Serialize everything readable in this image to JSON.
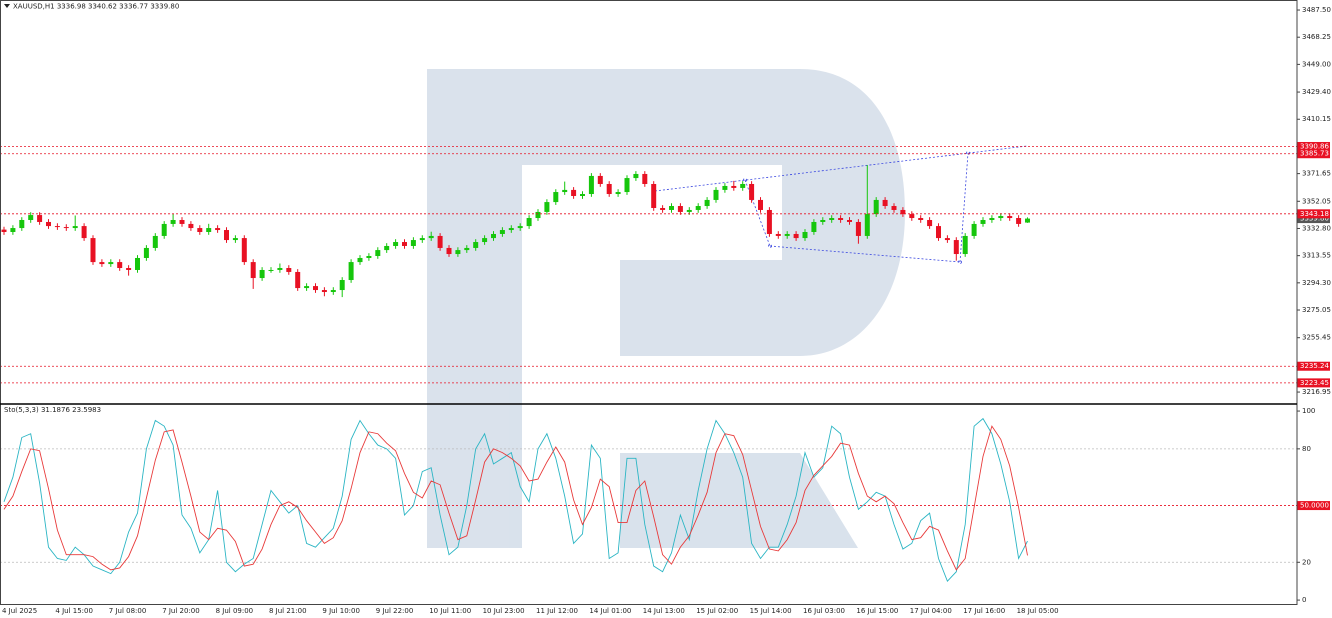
{
  "chart_data": [
    {
      "type": "candlestick",
      "title": "XAUUSD,H1  3336.98 3340.62 3336.77 3339.80",
      "categories": [
        "4 Jul 2025",
        null,
        null,
        null,
        null,
        null,
        "4 Jul 15:00",
        null,
        null,
        null,
        null,
        null,
        "7 Jul 08:00",
        null,
        null,
        null,
        null,
        null,
        "7 Jul 20:00",
        null,
        null,
        null,
        null,
        null,
        "8 Jul 09:00",
        null,
        null,
        null,
        null,
        null,
        "8 Jul 21:00",
        null,
        null,
        null,
        null,
        null,
        "9 Jul 10:00",
        null,
        null,
        null,
        null,
        null,
        "9 Jul 22:00",
        null,
        null,
        null,
        null,
        null,
        "10 Jul 11:00",
        null,
        null,
        null,
        null,
        null,
        "10 Jul 23:00",
        null,
        null,
        null,
        null,
        null,
        "11 Jul 12:00",
        null,
        null,
        null,
        null,
        null,
        "14 Jul 01:00",
        null,
        null,
        null,
        null,
        null,
        "14 Jul 13:00",
        null,
        null,
        null,
        null,
        null,
        "15 Jul 02:00",
        null,
        null,
        null,
        null,
        null,
        "15 Jul 14:00",
        null,
        null,
        null,
        null,
        null,
        "16 Jul 03:00",
        null,
        null,
        null,
        null,
        null,
        "16 Jul 15:00",
        null,
        null,
        null,
        null,
        null,
        "17 Jul 04:00",
        null,
        null,
        null,
        null,
        null,
        "17 Jul 16:00",
        null,
        null,
        null,
        null,
        null,
        "18 Jul 05:00",
        null
      ],
      "open": [
        3332.0,
        3330.3,
        3333.1,
        3338.8,
        3342.3,
        3337.4,
        3334.5,
        3333.8,
        3333.1,
        3334.5,
        3326.0,
        3309.0,
        3307.6,
        3309.0,
        3304.8,
        3303.4,
        3311.9,
        3319.0,
        3327.5,
        3336.0,
        3338.8,
        3336.0,
        3333.1,
        3330.3,
        3333.1,
        3331.7,
        3324.6,
        3326.0,
        3309.0,
        3297.7,
        3303.4,
        3303.4,
        3304.8,
        3302.0,
        3290.6,
        3292.0,
        3289.2,
        3287.8,
        3289.2,
        3296.3,
        3309.0,
        3311.9,
        3313.3,
        3317.5,
        3320.4,
        3323.2,
        3320.4,
        3324.6,
        3326.0,
        3327.5,
        3319.0,
        3314.7,
        3317.5,
        3319.0,
        3323.2,
        3326.0,
        3328.9,
        3331.7,
        3333.1,
        3334.5,
        3340.2,
        3344.5,
        3351.5,
        3358.6,
        3360.1,
        3355.8,
        3357.2,
        3370.0,
        3364.3,
        3357.2,
        3358.6,
        3368.5,
        3371.4,
        3364.3,
        3347.3,
        3345.9,
        3348.7,
        3344.5,
        3345.9,
        3348.7,
        3353.0,
        3360.1,
        3362.9,
        3361.5,
        3364.3,
        3353.0,
        3345.9,
        3328.9,
        3327.5,
        3328.9,
        3326.0,
        3330.3,
        3337.4,
        3338.8,
        3340.2,
        3338.8,
        3337.4,
        3327.5,
        3343.0,
        3353.0,
        3348.7,
        3345.9,
        3343.0,
        3340.2,
        3338.8,
        3334.5,
        3326.0,
        3324.6,
        3314.7,
        3327.5,
        3336.0,
        3338.8,
        3340.2,
        3341.6,
        3340.2,
        3336.98
      ],
      "high": [
        3334.0,
        3335.1,
        3340.8,
        3344.3,
        3344.3,
        3339.4,
        3336.5,
        3335.8,
        3342.0,
        3336.5,
        3328.0,
        3311.0,
        3311.0,
        3311.0,
        3306.8,
        3313.9,
        3321.0,
        3329.5,
        3338.0,
        3343.0,
        3340.8,
        3338.0,
        3335.1,
        3336.1,
        3335.1,
        3333.7,
        3328.0,
        3328.0,
        3311.0,
        3305.4,
        3305.4,
        3308.0,
        3306.8,
        3304.0,
        3294.0,
        3294.0,
        3291.2,
        3291.2,
        3298.3,
        3311.0,
        3313.9,
        3315.3,
        3319.5,
        3322.4,
        3325.2,
        3325.2,
        3326.6,
        3328.0,
        3330.5,
        3329.5,
        3321.0,
        3319.5,
        3321.0,
        3325.2,
        3328.0,
        3330.9,
        3333.7,
        3335.1,
        3336.5,
        3342.2,
        3346.5,
        3353.5,
        3360.6,
        3366.0,
        3362.1,
        3359.2,
        3372.0,
        3372.0,
        3366.3,
        3360.6,
        3370.5,
        3373.4,
        3373.4,
        3366.3,
        3349.3,
        3350.7,
        3350.7,
        3347.9,
        3350.7,
        3355.0,
        3362.1,
        3364.9,
        3366.5,
        3366.3,
        3366.3,
        3355.0,
        3347.9,
        3330.9,
        3330.9,
        3330.9,
        3332.3,
        3339.4,
        3340.8,
        3342.2,
        3342.2,
        3340.8,
        3339.4,
        3377.7,
        3355.0,
        3355.0,
        3350.7,
        3347.9,
        3345.0,
        3342.2,
        3340.8,
        3336.5,
        3328.0,
        3326.6,
        3329.5,
        3338.0,
        3340.8,
        3342.2,
        3343.6,
        3343.6,
        3342.2,
        3340.62
      ],
      "low": [
        3328.3,
        3328.3,
        3331.1,
        3336.8,
        3335.4,
        3332.5,
        3331.8,
        3331.1,
        3331.1,
        3324.0,
        3307.0,
        3305.6,
        3305.6,
        3302.8,
        3299.4,
        3301.4,
        3309.9,
        3317.0,
        3325.5,
        3334.0,
        3334.0,
        3331.1,
        3328.3,
        3328.3,
        3329.7,
        3322.6,
        3322.6,
        3307.0,
        3290.0,
        3295.7,
        3301.4,
        3301.4,
        3300.0,
        3288.6,
        3288.6,
        3287.2,
        3284.8,
        3285.8,
        3284.2,
        3294.3,
        3307.0,
        3309.9,
        3311.3,
        3315.5,
        3318.4,
        3318.4,
        3318.4,
        3322.6,
        3324.0,
        3317.0,
        3312.7,
        3312.7,
        3315.5,
        3317.0,
        3321.2,
        3324.0,
        3326.9,
        3329.7,
        3331.1,
        3332.5,
        3338.2,
        3342.5,
        3349.5,
        3356.6,
        3353.8,
        3353.8,
        3355.2,
        3362.3,
        3355.2,
        3355.2,
        3356.6,
        3366.5,
        3362.3,
        3345.3,
        3343.9,
        3343.9,
        3342.5,
        3342.5,
        3343.9,
        3346.7,
        3351.0,
        3358.1,
        3359.5,
        3359.5,
        3351.0,
        3343.9,
        3326.9,
        3325.5,
        3325.5,
        3324.0,
        3324.0,
        3328.3,
        3335.4,
        3336.8,
        3336.8,
        3335.4,
        3322.0,
        3325.5,
        3341.0,
        3346.7,
        3343.9,
        3341.0,
        3338.2,
        3336.8,
        3332.5,
        3324.0,
        3322.6,
        3310.0,
        3312.7,
        3325.5,
        3334.0,
        3336.8,
        3338.2,
        3338.2,
        3334.0,
        3336.77
      ],
      "close": [
        3330.3,
        3333.1,
        3338.8,
        3342.3,
        3337.4,
        3334.5,
        3333.8,
        3333.1,
        3334.5,
        3326.0,
        3309.0,
        3307.6,
        3309.0,
        3304.8,
        3303.4,
        3311.9,
        3319.0,
        3327.5,
        3336.0,
        3338.8,
        3336.0,
        3333.1,
        3330.3,
        3333.1,
        3331.7,
        3324.6,
        3326.0,
        3309.0,
        3297.7,
        3303.4,
        3303.4,
        3304.8,
        3302.0,
        3290.6,
        3292.0,
        3289.2,
        3287.8,
        3289.2,
        3296.3,
        3309.0,
        3311.9,
        3313.3,
        3317.5,
        3320.4,
        3323.2,
        3320.4,
        3324.6,
        3326.0,
        3327.5,
        3319.0,
        3314.7,
        3317.5,
        3319.0,
        3323.2,
        3326.0,
        3328.9,
        3331.7,
        3333.1,
        3334.5,
        3340.2,
        3344.5,
        3351.5,
        3358.6,
        3360.1,
        3355.8,
        3357.2,
        3370.0,
        3364.3,
        3357.2,
        3358.6,
        3368.5,
        3371.4,
        3364.3,
        3347.3,
        3345.9,
        3348.7,
        3344.5,
        3345.9,
        3348.7,
        3353.0,
        3360.1,
        3362.9,
        3361.5,
        3364.3,
        3353.0,
        3345.9,
        3328.9,
        3327.5,
        3328.9,
        3326.0,
        3330.3,
        3337.4,
        3338.8,
        3340.2,
        3338.8,
        3337.4,
        3327.5,
        3343.0,
        3353.0,
        3348.7,
        3345.9,
        3343.0,
        3340.2,
        3338.8,
        3334.5,
        3326.0,
        3324.6,
        3314.7,
        3327.5,
        3336.0,
        3338.8,
        3340.2,
        3341.6,
        3340.2,
        3336.0,
        3339.8
      ],
      "up_color": "#16c60c",
      "down_color": "#e81123",
      "ylim": [
        3209.2,
        3494.6
      ],
      "yticks": [
        {
          "value": 3216.95,
          "label": "3216.95"
        },
        {
          "value": 3255.45,
          "label": "3255.45"
        },
        {
          "value": 3275.05,
          "label": "3275.05"
        },
        {
          "value": 3294.3,
          "label": "3294.30"
        },
        {
          "value": 3313.55,
          "label": "3313.55"
        },
        {
          "value": 3332.8,
          "label": "3332.80"
        },
        {
          "value": 3352.05,
          "label": "3352.05"
        },
        {
          "value": 3371.65,
          "label": "3371.65"
        },
        {
          "value": 3410.15,
          "label": "3410.15"
        },
        {
          "value": 3429.4,
          "label": "3429.40"
        },
        {
          "value": 3449,
          "label": "3449.00"
        },
        {
          "value": 3468.25,
          "label": "3468.25"
        },
        {
          "value": 3487.5,
          "label": "3487.50"
        }
      ],
      "levels": [
        {
          "value": 3390.86,
          "label": "3390.86"
        },
        {
          "value": 3385.73,
          "label": "3385.73"
        },
        {
          "value": 3343.18,
          "label": "3343.18"
        },
        {
          "value": 3235.24,
          "label": "3235.24"
        },
        {
          "value": 3223.45,
          "label": "3223.45"
        }
      ],
      "level_color": "#e81123",
      "last_price": {
        "value": 3339.8,
        "label": "3339.80"
      }
    },
    {
      "type": "line",
      "title": "Sto(5,3,3) 31.1876 23.5983",
      "series": [
        {
          "color": "#2bb5c4",
          "values": [
            52,
            65,
            86,
            88,
            62,
            28,
            22,
            21,
            28,
            24,
            18,
            16,
            14,
            20,
            36,
            46,
            80,
            95,
            92,
            82,
            45,
            38,
            25,
            32,
            58,
            20,
            15,
            19,
            22,
            40,
            58,
            52,
            46,
            50,
            30,
            28,
            33,
            38,
            55,
            85,
            95,
            88,
            82,
            80,
            75,
            45,
            50,
            68,
            70,
            45,
            24,
            28,
            50,
            80,
            88,
            72,
            75,
            78,
            60,
            52,
            80,
            88,
            75,
            55,
            30,
            35,
            82,
            75,
            22,
            25,
            75,
            75,
            40,
            18,
            15,
            25,
            45,
            32,
            58,
            80,
            95,
            88,
            78,
            65,
            30,
            22,
            28,
            28,
            40,
            55,
            78,
            65,
            70,
            92,
            88,
            65,
            48,
            52,
            57,
            55,
            40,
            27,
            30,
            42,
            46,
            22,
            10,
            15,
            40,
            92,
            96,
            88,
            72,
            52,
            22,
            31.1876
          ]
        },
        {
          "color": "#e83a3a",
          "values": [
            48,
            55,
            68,
            80,
            79,
            59,
            37,
            24,
            24,
            24,
            23,
            19,
            16,
            17,
            23,
            34,
            54,
            74,
            89,
            90,
            73,
            55,
            36,
            32,
            38,
            37,
            31,
            18,
            19,
            27,
            40,
            50,
            52,
            49,
            42,
            36,
            30,
            33,
            42,
            59,
            78,
            89,
            88,
            83,
            79,
            67,
            57,
            54,
            63,
            61,
            46,
            32,
            34,
            53,
            73,
            80,
            78,
            75,
            71,
            63,
            64,
            73,
            81,
            73,
            53,
            40,
            49,
            64,
            60,
            41,
            41,
            58,
            63,
            44,
            24,
            19,
            28,
            34,
            45,
            57,
            78,
            88,
            87,
            77,
            58,
            39,
            27,
            26,
            32,
            41,
            58,
            66,
            71,
            76,
            83,
            82,
            67,
            55,
            52,
            55,
            51,
            41,
            32,
            33,
            39,
            37,
            26,
            16,
            22,
            49,
            76,
            92,
            85,
            71,
            49,
            23.5983
          ]
        }
      ],
      "ylim": [
        -2.6,
        103.2
      ],
      "yticks": [
        0,
        20,
        80,
        100
      ],
      "levels": [
        {
          "value": 50,
          "label": "50.0000"
        }
      ],
      "level_color": "#e81123"
    }
  ]
}
